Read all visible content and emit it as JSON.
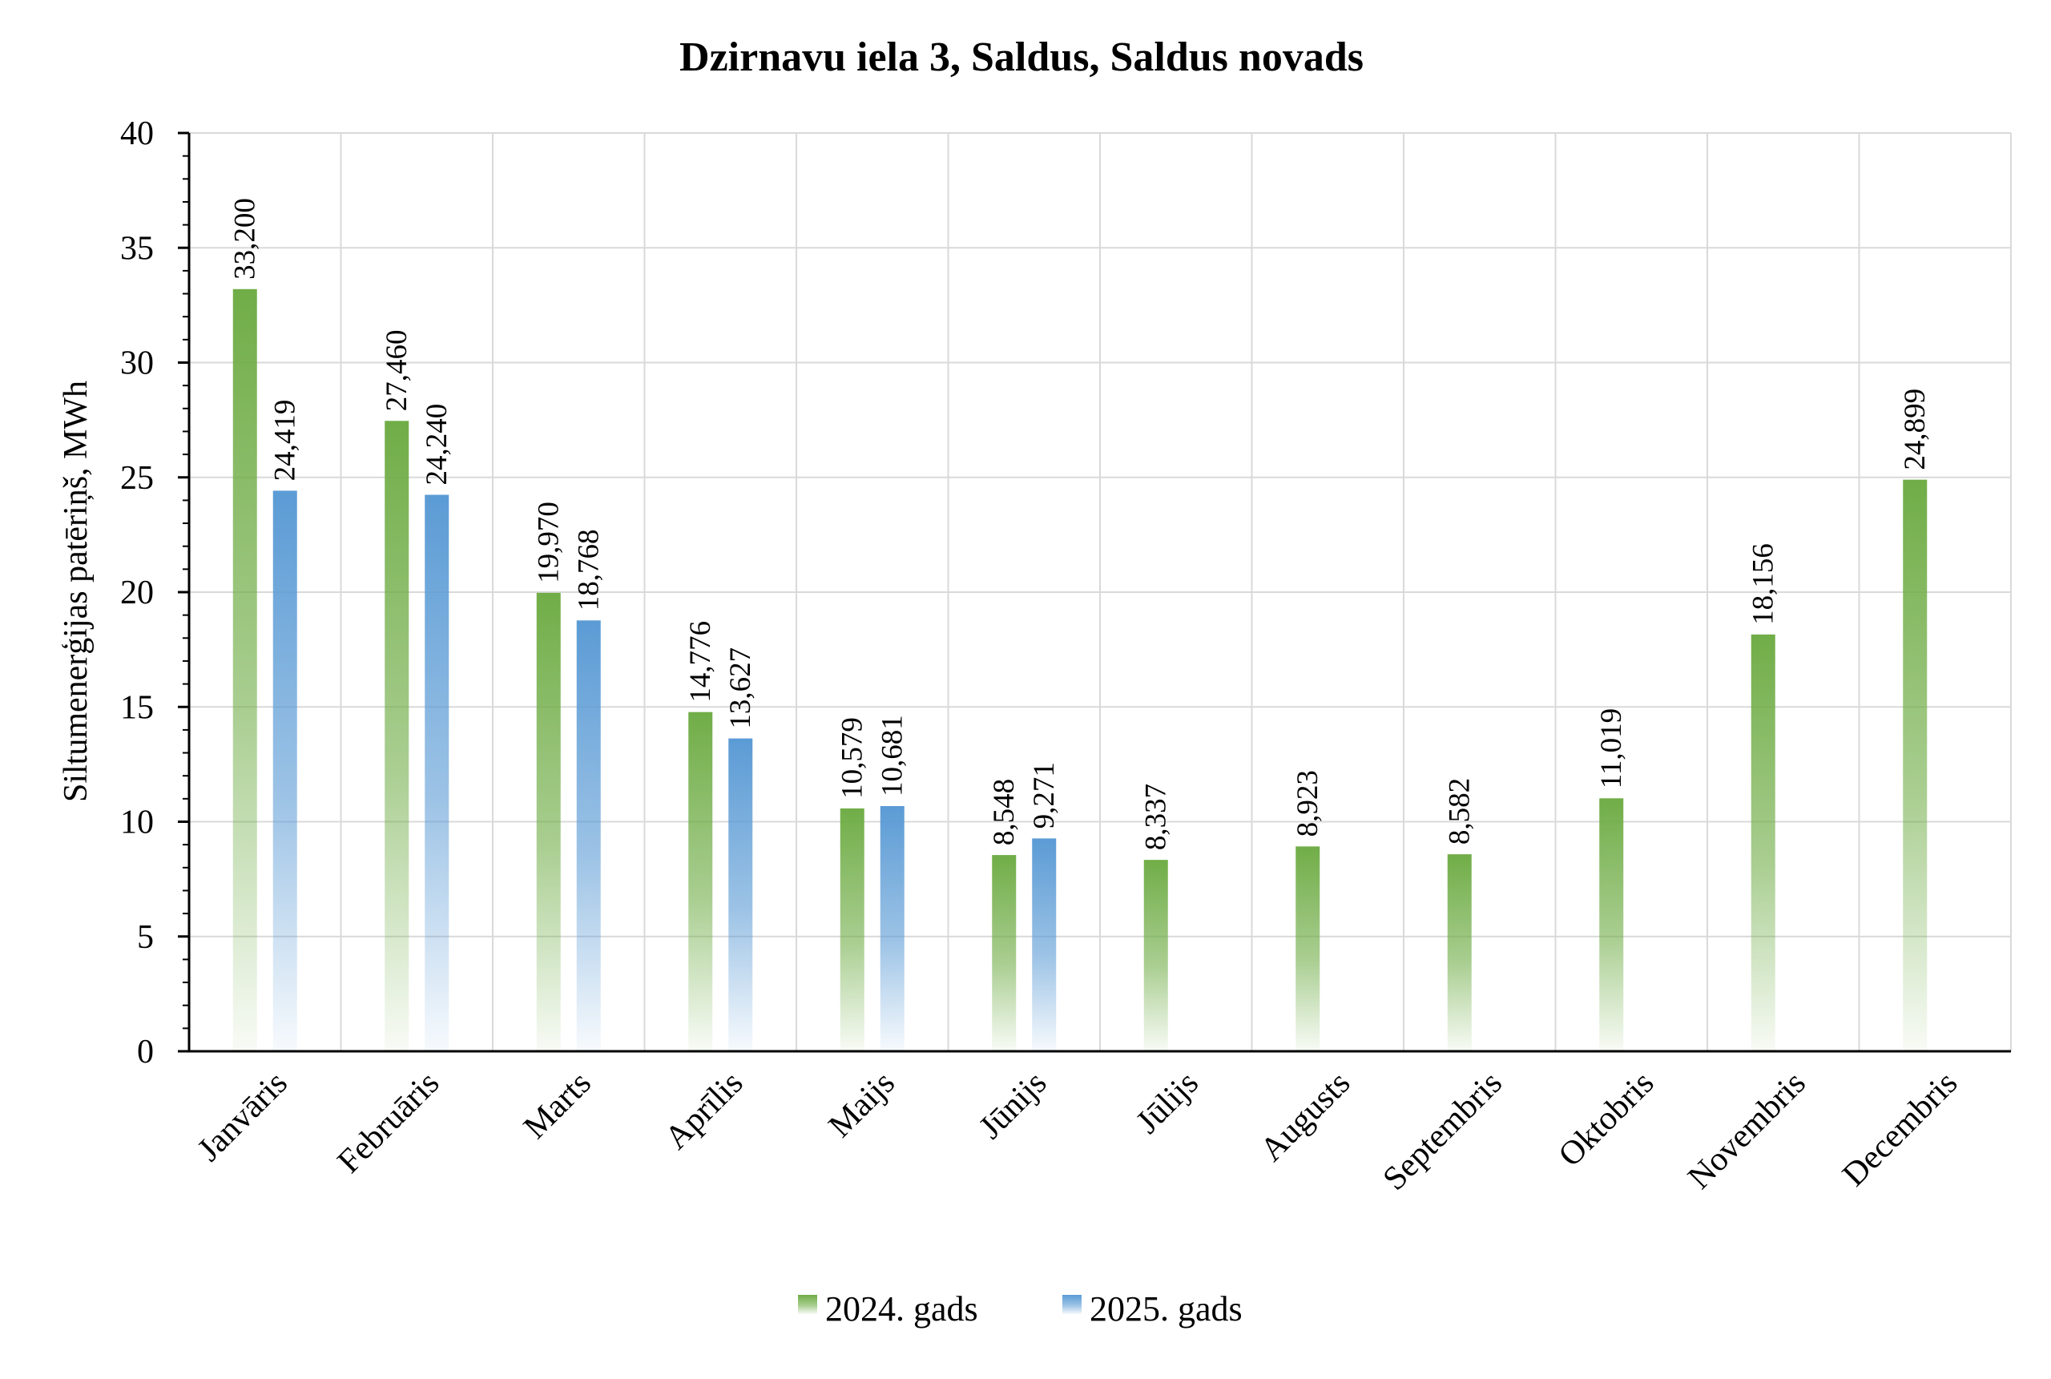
{
  "chart_data": {
    "type": "bar",
    "title": "Dzirnavu iela 3, Saldus, Saldus novads",
    "ylabel": "Siltumenerģijas patēriņš, MWh",
    "xlabel": "",
    "ylim": [
      0,
      40
    ],
    "yticks": [
      "0",
      "5",
      "10",
      "15",
      "20",
      "25",
      "30",
      "35",
      "40"
    ],
    "grid": true,
    "legend_position": "bottom",
    "categories": [
      "Janvāris",
      "Februāris",
      "Marts",
      "Aprīlis",
      "Maijs",
      "Jūnijs",
      "Jūlijs",
      "Augusts",
      "Septembris",
      "Oktobris",
      "Novembris",
      "Decembris"
    ],
    "series": [
      {
        "name": "2024. gads",
        "color": "#70ad47",
        "values": [
          33.2,
          27.46,
          19.97,
          14.776,
          10.579,
          8.548,
          8.337,
          8.923,
          8.582,
          11.019,
          18.156,
          24.899
        ],
        "labels": [
          "33,200",
          "27,460",
          "19,970",
          "14,776",
          "10,579",
          "8,548",
          "8,337",
          "8,923",
          "8,582",
          "11,019",
          "18,156",
          "24,899"
        ]
      },
      {
        "name": "2025. gads",
        "color": "#5b9bd5",
        "values": [
          24.419,
          24.24,
          18.768,
          13.627,
          10.681,
          9.271,
          null,
          null,
          null,
          null,
          null,
          null
        ],
        "labels": [
          "24,419",
          "24,240",
          "18,768",
          "13,627",
          "10,681",
          "9,271",
          null,
          null,
          null,
          null,
          null,
          null
        ]
      }
    ]
  }
}
